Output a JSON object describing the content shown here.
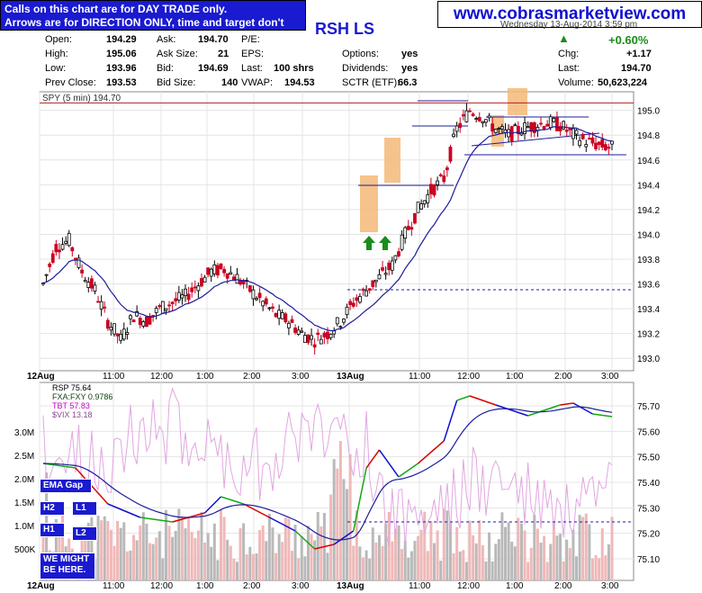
{
  "note": {
    "line1": "Calls on this chart are for DAY TRADE only.",
    "line2": "Arrows are for DIRECTION ONLY, time and target don't count."
  },
  "site": "www.cobrasmarketview.com",
  "symbol": "RSH LS",
  "date_text": "Wednesday 13-Aug-2014 3:59 pm",
  "quote": {
    "open_label": "Open:",
    "open": "194.29",
    "high_label": "High:",
    "high": "195.06",
    "low_label": "Low:",
    "low": "193.96",
    "prev_label": "Prev Close:",
    "prev": "193.53",
    "ask_label": "Ask:",
    "ask": "194.70",
    "asksize_label": "Ask Size:",
    "asksize": "21",
    "bid_label": "Bid:",
    "bid": "194.69",
    "bidsize_label": "Bid Size:",
    "bidsize": "140",
    "pe_label": "P/E:",
    "eps_label": "EPS:",
    "last_label": "Last:",
    "last_shrs": "100 shrs",
    "vwap_label": "VWAP:",
    "vwap": "194.53",
    "options_label": "Options:",
    "options": "yes",
    "dividends_label": "Dividends:",
    "dividends": "yes",
    "sctr_label": "SCTR (ETF):",
    "sctr": "66.3",
    "pct": "+0.60%",
    "chg_label": "Chg:",
    "chg": "+1.17",
    "last2_label": "Last:",
    "last2": "194.70",
    "volume_label": "Volume:",
    "volume": "50,623,224"
  },
  "labels_left": {
    "ema_gap": "EMA Gap",
    "h2": "H2",
    "l1": "L1",
    "h1": "H1",
    "l2": "L2",
    "might": "WE MIGHT BE HERE."
  },
  "colors": {
    "blue_box": "#1a1ad0",
    "up": "#000000",
    "down": "#cc0022",
    "ema": "#1c1c9c",
    "orange": "#f5b878",
    "arrow": "#1a8c1a",
    "rsp_green": "#11aa11",
    "rsp_red": "#dd0000",
    "rsp_blue": "#1111cc",
    "vix": "#e2a6e2",
    "volume": "#b9b9b9"
  },
  "chart_data": [
    {
      "type": "candlestick",
      "title": "SPY (5 min) 194.70",
      "ylim": [
        192.9,
        195.15
      ],
      "y_ticks": [
        "195.0",
        "194.8",
        "194.6",
        "194.4",
        "194.2",
        "194.0",
        "193.8",
        "193.6",
        "193.4",
        "193.2",
        "193.0"
      ],
      "y_tick_values": [
        195.0,
        194.8,
        194.6,
        194.4,
        194.2,
        194.0,
        193.8,
        193.6,
        193.4,
        193.2,
        193.0
      ],
      "x_ticks": [
        "12Aug",
        "11:00",
        "12:00",
        "1:00",
        "2:00",
        "3:00",
        "13Aug",
        "11:00",
        "12:00",
        "1:00",
        "2:00",
        "3:00"
      ],
      "series_close_points": [
        [
          0,
          193.6
        ],
        [
          4,
          193.9
        ],
        [
          8,
          193.95
        ],
        [
          12,
          193.7
        ],
        [
          16,
          193.55
        ],
        [
          20,
          193.3
        ],
        [
          24,
          193.15
        ],
        [
          28,
          193.35
        ],
        [
          32,
          193.3
        ],
        [
          36,
          193.4
        ],
        [
          40,
          193.45
        ],
        [
          44,
          193.5
        ],
        [
          48,
          193.6
        ],
        [
          52,
          193.7
        ],
        [
          56,
          193.72
        ],
        [
          60,
          193.65
        ],
        [
          64,
          193.55
        ],
        [
          68,
          193.45
        ],
        [
          72,
          193.35
        ],
        [
          76,
          193.3
        ],
        [
          80,
          193.2
        ],
        [
          84,
          193.15
        ],
        [
          88,
          193.2
        ],
        [
          92,
          193.3
        ],
        [
          96,
          193.45
        ],
        [
          100,
          193.55
        ],
        [
          104,
          193.65
        ],
        [
          108,
          193.75
        ],
        [
          112,
          194.0
        ],
        [
          116,
          194.2
        ],
        [
          120,
          194.35
        ],
        [
          124,
          194.45
        ],
        [
          128,
          194.85
        ],
        [
          132,
          195.0
        ],
        [
          136,
          194.95
        ],
        [
          140,
          194.85
        ],
        [
          144,
          194.8
        ],
        [
          148,
          194.85
        ],
        [
          152,
          194.88
        ],
        [
          156,
          194.9
        ],
        [
          160,
          194.88
        ],
        [
          164,
          194.8
        ],
        [
          168,
          194.75
        ],
        [
          172,
          194.72
        ],
        [
          176,
          194.7
        ]
      ],
      "levels": [
        195.05,
        194.95,
        194.85,
        194.6,
        194.35,
        193.55
      ],
      "highlight_zones": [
        [
          180,
          193.95,
          194.35
        ],
        [
          188,
          194.4,
          194.62
        ],
        [
          229,
          194.8,
          195.0
        ],
        [
          256,
          194.8,
          195.05
        ]
      ],
      "arrows": [
        "up",
        "up"
      ]
    },
    {
      "type": "line",
      "title": "RSP 75.64",
      "series": [
        {
          "name": "RSP 75.64"
        },
        {
          "name": "FXA:FXY 0.9786"
        },
        {
          "name": "TBT 57.83"
        },
        {
          "name": "$VIX 13.18"
        }
      ],
      "y_ticks": [
        "75.70",
        "75.60",
        "75.50",
        "75.40",
        "75.30",
        "75.20",
        "75.10"
      ],
      "y_tick_values": [
        75.7,
        75.6,
        75.5,
        75.4,
        75.3,
        75.2,
        75.1
      ],
      "volume_ticks": [
        "3.0M",
        "2.5M",
        "2.0M",
        "1.5M",
        "1.0M",
        "500K"
      ],
      "x_ticks": [
        "12Aug",
        "11:00",
        "12:00",
        "1:00",
        "2:00",
        "3:00",
        "13Aug",
        "11:00",
        "12:00",
        "1:00",
        "2:00",
        "3:00"
      ]
    }
  ]
}
